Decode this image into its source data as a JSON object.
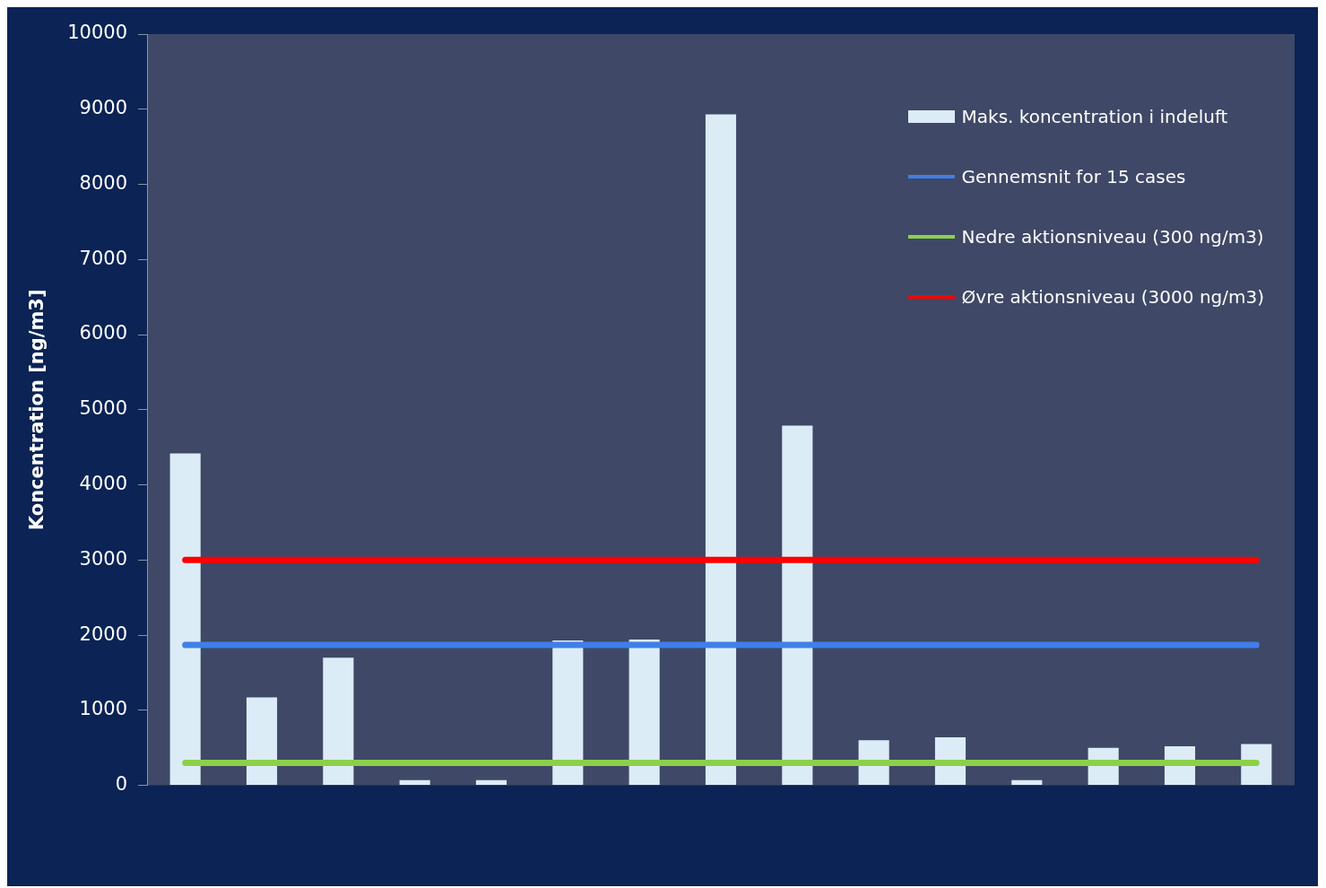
{
  "chart_data": {
    "type": "bar",
    "ylabel": "Koncentration [ng/m3]",
    "categories": [
      null,
      null,
      null,
      null,
      null,
      null,
      null,
      null,
      null,
      null,
      null,
      null,
      null,
      null,
      null
    ],
    "series": [
      {
        "name": "Maks. koncentration i indeluft",
        "color": "#dcecf6",
        "values": [
          4420,
          1170,
          1700,
          70,
          70,
          1930,
          1940,
          8930,
          4790,
          600,
          640,
          70,
          500,
          520,
          550
        ]
      }
    ],
    "ref_lines": [
      {
        "axis": "y",
        "value": 1870,
        "label": "Gennemsnit for 15 cases",
        "color": "#3f7fe8"
      },
      {
        "axis": "y",
        "value": 300,
        "label": "Nedre aktionsniveau (300 ng/m3)",
        "color": "#8cd04a"
      },
      {
        "axis": "y",
        "value": 3000,
        "label": "Øvre aktionsniveau (3000 ng/m3)",
        "color": "#ff0000"
      }
    ],
    "ylim": [
      0,
      10000
    ],
    "yticks": [
      0,
      1000,
      2000,
      3000,
      4000,
      5000,
      6000,
      7000,
      8000,
      9000,
      10000
    ],
    "grid": false,
    "legend": "top right"
  }
}
